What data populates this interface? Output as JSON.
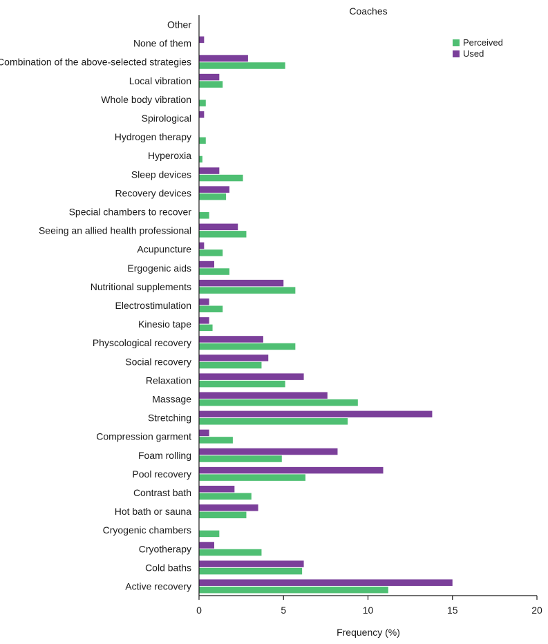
{
  "chart_data": {
    "type": "bar",
    "orientation": "horizontal",
    "title": "Coaches",
    "xlabel": "Frequency (%)",
    "ylabel": "",
    "xlim": [
      0,
      20
    ],
    "xticks": [
      0,
      5,
      10,
      15,
      20
    ],
    "legend_position": "top-right",
    "categories": [
      "Other",
      "None of them",
      "Combination of the above-selected strategies",
      "Local vibration",
      "Whole body vibration",
      "Spirological",
      "Hydrogen therapy",
      "Hyperoxia",
      "Sleep devices",
      "Recovery devices",
      "Special chambers to recover",
      "Seeing an allied health professional",
      "Acupuncture",
      "Ergogenic aids",
      "Nutritional supplements",
      "Electrostimulation",
      "Kinesio tape",
      "Physcological recovery",
      "Social recovery",
      "Relaxation",
      "Massage",
      "Stretching",
      "Compression garment",
      "Foam rolling",
      "Pool recovery",
      "Contrast bath",
      "Hot bath or sauna",
      "Cryogenic chambers",
      "Cryotherapy",
      "Cold baths",
      "Active recovery"
    ],
    "series": [
      {
        "name": "Used",
        "color": "#7b3f9a",
        "values": [
          0,
          0.3,
          2.9,
          1.2,
          0,
          0.3,
          0,
          0,
          1.2,
          1.8,
          0,
          2.3,
          0.3,
          0.9,
          5.0,
          0.6,
          0.6,
          3.8,
          4.1,
          6.2,
          7.6,
          13.8,
          0.6,
          8.2,
          10.9,
          2.1,
          3.5,
          0,
          0.9,
          6.2,
          15.0
        ]
      },
      {
        "name": "Perceived",
        "color": "#4fbf73",
        "values": [
          0,
          0,
          5.1,
          1.4,
          0.4,
          0,
          0.4,
          0.2,
          2.6,
          1.6,
          0.6,
          2.8,
          1.4,
          1.8,
          5.7,
          1.4,
          0.8,
          5.7,
          3.7,
          5.1,
          9.4,
          8.8,
          2.0,
          4.9,
          6.3,
          3.1,
          2.8,
          1.2,
          3.7,
          6.1,
          11.2
        ]
      }
    ]
  }
}
